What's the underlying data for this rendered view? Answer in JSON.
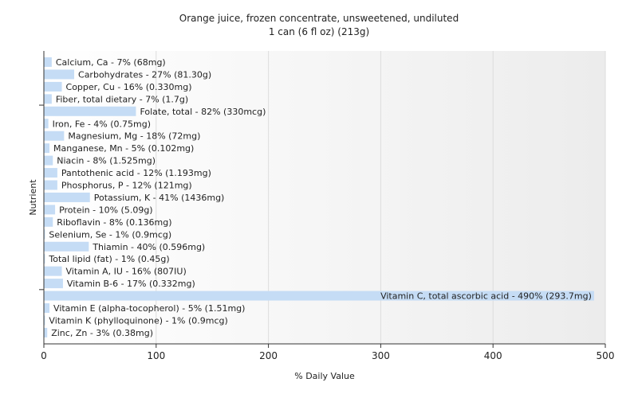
{
  "chart_data": {
    "type": "bar",
    "orientation": "horizontal",
    "title": "Orange juice, frozen concentrate, unsweetened, undiluted",
    "subtitle": "1 can (6 fl oz) (213g)",
    "xlabel": "% Daily Value",
    "ylabel": "Nutrient",
    "xlim": [
      0,
      500
    ],
    "xticks": [
      "0",
      "100",
      "200",
      "300",
      "400",
      "500"
    ],
    "grid": true,
    "bar_color": "#c5dcf5",
    "categories": [
      "Calcium, Ca",
      "Carbohydrates",
      "Copper, Cu",
      "Fiber, total dietary",
      "Folate, total",
      "Iron, Fe",
      "Magnesium, Mg",
      "Manganese, Mn",
      "Niacin",
      "Pantothenic acid",
      "Phosphorus, P",
      "Potassium, K",
      "Protein",
      "Riboflavin",
      "Selenium, Se",
      "Thiamin",
      "Total lipid (fat)",
      "Vitamin A, IU",
      "Vitamin B-6",
      "Vitamin C, total ascorbic acid",
      "Vitamin E (alpha-tocopherol)",
      "Vitamin K (phylloquinone)",
      "Zinc, Zn"
    ],
    "values": [
      7,
      27,
      16,
      7,
      82,
      4,
      18,
      5,
      8,
      12,
      12,
      41,
      10,
      8,
      1,
      40,
      1,
      16,
      17,
      490,
      5,
      1,
      3
    ],
    "labels": [
      "Calcium, Ca - 7% (68mg)",
      "Carbohydrates - 27% (81.30g)",
      "Copper, Cu - 16% (0.330mg)",
      "Fiber, total dietary - 7% (1.7g)",
      "Folate, total - 82% (330mcg)",
      "Iron, Fe - 4% (0.75mg)",
      "Magnesium, Mg - 18% (72mg)",
      "Manganese, Mn - 5% (0.102mg)",
      "Niacin - 8% (1.525mg)",
      "Pantothenic acid - 12% (1.193mg)",
      "Phosphorus, P - 12% (121mg)",
      "Potassium, K - 41% (1436mg)",
      "Protein - 10% (5.09g)",
      "Riboflavin - 8% (0.136mg)",
      "Selenium, Se - 1% (0.9mcg)",
      "Thiamin - 40% (0.596mg)",
      "Total lipid (fat) - 1% (0.45g)",
      "Vitamin A, IU - 16% (807IU)",
      "Vitamin B-6 - 17% (0.332mg)",
      "Vitamin C, total ascorbic acid - 490% (293.7mg)",
      "Vitamin E (alpha-tocopherol) - 5% (1.51mg)",
      "Vitamin K (phylloquinone) - 1% (0.9mcg)",
      "Zinc, Zn - 3% (0.38mg)"
    ]
  }
}
